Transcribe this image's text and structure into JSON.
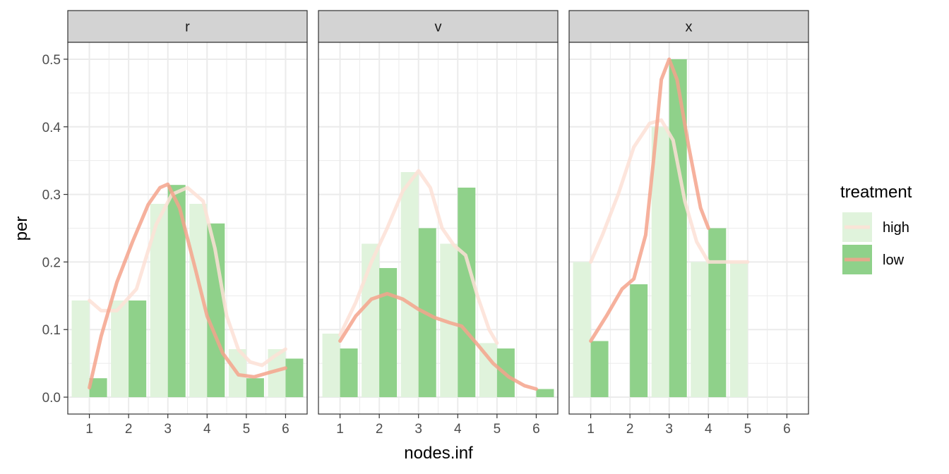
{
  "chart_data": {
    "type": "bar",
    "facet_by": "",
    "xlabel": "nodes.inf",
    "ylabel": "per",
    "x_ticks": [
      1,
      2,
      3,
      4,
      5,
      6
    ],
    "y_ticks": [
      0.0,
      0.1,
      0.2,
      0.3,
      0.4,
      0.5
    ],
    "y_tick_labels": [
      "0.0",
      "0.1",
      "0.2",
      "0.3",
      "0.4",
      "0.5"
    ],
    "x_tick_labels": [
      "1",
      "2",
      "3",
      "4",
      "5",
      "6"
    ],
    "xlim": [
      0.45,
      6.55
    ],
    "ylim": [
      -0.025,
      0.525
    ],
    "grid": true,
    "legend": {
      "title": "treatment",
      "position": "right",
      "entries": [
        {
          "label": "high",
          "bar_color": "#e0f3dc",
          "line_color": "#fde0d6"
        },
        {
          "label": "low",
          "bar_color": "#8fd18a",
          "line_color": "#f4a38c"
        }
      ]
    },
    "colors": {
      "high_bar": "#e0f3dc",
      "low_bar": "#8fd18a",
      "high_line": "#fde0d6",
      "low_line": "#f4a38c",
      "strip_bg": "#d3d3d3",
      "grid": "#ebebeb"
    },
    "facets": [
      {
        "label": "r",
        "series": [
          {
            "name": "high",
            "x": [
              1,
              2,
              3,
              4,
              5,
              6
            ],
            "values": [
              0.143,
              0.143,
              0.286,
              0.286,
              0.071,
              0.071
            ]
          },
          {
            "name": "low",
            "x": [
              1,
              2,
              3,
              4,
              5,
              6
            ],
            "values": [
              0.028,
              0.143,
              0.314,
              0.257,
              0.028,
              0.057
            ]
          }
        ],
        "smooth_high": [
          [
            1,
            0.143
          ],
          [
            1.3,
            0.128
          ],
          [
            1.7,
            0.128
          ],
          [
            2.2,
            0.16
          ],
          [
            2.7,
            0.255
          ],
          [
            3.1,
            0.3
          ],
          [
            3.5,
            0.31
          ],
          [
            3.9,
            0.29
          ],
          [
            4.2,
            0.22
          ],
          [
            4.5,
            0.12
          ],
          [
            4.8,
            0.07
          ],
          [
            5.1,
            0.052
          ],
          [
            5.4,
            0.047
          ],
          [
            5.7,
            0.06
          ],
          [
            6,
            0.071
          ]
        ],
        "smooth_low": [
          [
            1,
            0.014
          ],
          [
            1.3,
            0.09
          ],
          [
            1.7,
            0.17
          ],
          [
            2.1,
            0.23
          ],
          [
            2.5,
            0.285
          ],
          [
            2.8,
            0.31
          ],
          [
            3.0,
            0.315
          ],
          [
            3.3,
            0.28
          ],
          [
            3.7,
            0.19
          ],
          [
            4.0,
            0.12
          ],
          [
            4.4,
            0.065
          ],
          [
            4.8,
            0.033
          ],
          [
            5.2,
            0.03
          ],
          [
            5.5,
            0.035
          ],
          [
            6,
            0.043
          ]
        ]
      },
      {
        "label": "v",
        "series": [
          {
            "name": "high",
            "x": [
              1,
              2,
              3,
              4,
              5,
              6
            ],
            "values": [
              0.094,
              0.227,
              0.333,
              0.227,
              0.08,
              0.0
            ]
          },
          {
            "name": "low",
            "x": [
              1,
              2,
              3,
              4,
              5,
              6
            ],
            "values": [
              0.072,
              0.191,
              0.25,
              0.31,
              0.072,
              0.012
            ]
          }
        ],
        "smooth_high": [
          [
            1,
            0.092
          ],
          [
            1.4,
            0.14
          ],
          [
            1.8,
            0.2
          ],
          [
            2.2,
            0.25
          ],
          [
            2.6,
            0.305
          ],
          [
            3.0,
            0.335
          ],
          [
            3.3,
            0.31
          ],
          [
            3.6,
            0.25
          ],
          [
            3.9,
            0.225
          ],
          [
            4.2,
            0.21
          ],
          [
            4.5,
            0.15
          ],
          [
            4.8,
            0.1
          ],
          [
            5.0,
            0.08
          ]
        ],
        "smooth_low": [
          [
            1,
            0.083
          ],
          [
            1.4,
            0.12
          ],
          [
            1.8,
            0.145
          ],
          [
            2.2,
            0.153
          ],
          [
            2.6,
            0.145
          ],
          [
            3.0,
            0.13
          ],
          [
            3.4,
            0.118
          ],
          [
            3.8,
            0.11
          ],
          [
            4.1,
            0.105
          ],
          [
            4.5,
            0.078
          ],
          [
            4.9,
            0.05
          ],
          [
            5.3,
            0.03
          ],
          [
            5.7,
            0.017
          ],
          [
            6,
            0.012
          ]
        ]
      },
      {
        "label": "x",
        "series": [
          {
            "name": "high",
            "x": [
              1,
              2,
              3,
              4,
              5,
              6
            ],
            "values": [
              0.2,
              0.0,
              0.4,
              0.2,
              0.2,
              0.0
            ]
          },
          {
            "name": "low",
            "x": [
              1,
              2,
              3,
              4,
              5,
              6
            ],
            "values": [
              0.083,
              0.167,
              0.5,
              0.25,
              0.0,
              0.0
            ]
          }
        ],
        "smooth_high": [
          [
            1,
            0.2
          ],
          [
            1.3,
            0.24
          ],
          [
            1.7,
            0.3
          ],
          [
            2.1,
            0.37
          ],
          [
            2.5,
            0.405
          ],
          [
            2.8,
            0.41
          ],
          [
            3.1,
            0.38
          ],
          [
            3.4,
            0.29
          ],
          [
            3.7,
            0.23
          ],
          [
            4.0,
            0.2
          ],
          [
            4.5,
            0.2
          ],
          [
            5.0,
            0.2
          ]
        ],
        "smooth_low": [
          [
            1,
            0.083
          ],
          [
            1.4,
            0.12
          ],
          [
            1.8,
            0.16
          ],
          [
            2.1,
            0.175
          ],
          [
            2.4,
            0.24
          ],
          [
            2.6,
            0.35
          ],
          [
            2.8,
            0.47
          ],
          [
            3.0,
            0.5
          ],
          [
            3.2,
            0.47
          ],
          [
            3.5,
            0.37
          ],
          [
            3.8,
            0.28
          ],
          [
            4.0,
            0.25
          ]
        ]
      }
    ]
  }
}
